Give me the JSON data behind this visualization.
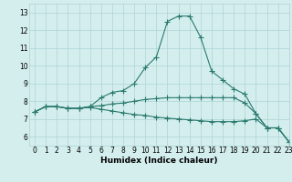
{
  "line1_x": [
    0,
    1,
    2,
    3,
    4,
    5,
    6,
    7,
    8,
    9,
    10,
    11,
    12,
    13,
    14,
    15,
    16,
    17,
    18,
    19,
    20,
    21,
    22,
    23
  ],
  "line1_y": [
    7.4,
    7.7,
    7.7,
    7.6,
    7.6,
    7.7,
    8.2,
    8.5,
    8.6,
    9.0,
    9.9,
    10.5,
    12.5,
    12.8,
    12.8,
    11.6,
    9.7,
    9.2,
    8.7,
    8.4,
    7.3,
    6.5,
    6.5,
    5.7
  ],
  "line2_x": [
    0,
    1,
    2,
    3,
    4,
    5,
    6,
    7,
    8,
    9,
    10,
    11,
    12,
    13,
    14,
    15,
    16,
    17,
    18,
    19,
    20,
    21,
    22,
    23
  ],
  "line2_y": [
    7.4,
    7.7,
    7.7,
    7.6,
    7.6,
    7.7,
    7.75,
    7.85,
    7.9,
    8.0,
    8.1,
    8.15,
    8.2,
    8.2,
    8.2,
    8.2,
    8.2,
    8.2,
    8.2,
    7.9,
    7.3,
    6.5,
    6.5,
    5.7
  ],
  "line3_x": [
    0,
    1,
    2,
    3,
    4,
    5,
    6,
    7,
    8,
    9,
    10,
    11,
    12,
    13,
    14,
    15,
    16,
    17,
    18,
    19,
    20,
    21,
    22,
    23
  ],
  "line3_y": [
    7.4,
    7.7,
    7.7,
    7.6,
    7.6,
    7.65,
    7.55,
    7.45,
    7.35,
    7.25,
    7.2,
    7.1,
    7.05,
    7.0,
    6.95,
    6.9,
    6.85,
    6.85,
    6.85,
    6.9,
    7.0,
    6.5,
    6.5,
    5.7
  ],
  "line_color": "#2a7a6e",
  "bg_color": "#d4eeee",
  "grid_color": "#aed4d4",
  "xlabel": "Humidex (Indice chaleur)",
  "xlim": [
    -0.5,
    23
  ],
  "ylim": [
    5.5,
    13.5
  ],
  "yticks": [
    6,
    7,
    8,
    9,
    10,
    11,
    12,
    13
  ],
  "xticks": [
    0,
    1,
    2,
    3,
    4,
    5,
    6,
    7,
    8,
    9,
    10,
    11,
    12,
    13,
    14,
    15,
    16,
    17,
    18,
    19,
    20,
    21,
    22,
    23
  ],
  "xtick_labels": [
    "0",
    "1",
    "2",
    "3",
    "4",
    "5",
    "6",
    "7",
    "8",
    "9",
    "10",
    "11",
    "12",
    "13",
    "14",
    "15",
    "16",
    "17",
    "18",
    "19",
    "20",
    "21",
    "22",
    "23"
  ],
  "marker": "+",
  "marker_size": 4,
  "line_width": 0.8,
  "tick_fontsize": 5.5,
  "xlabel_fontsize": 6.5
}
